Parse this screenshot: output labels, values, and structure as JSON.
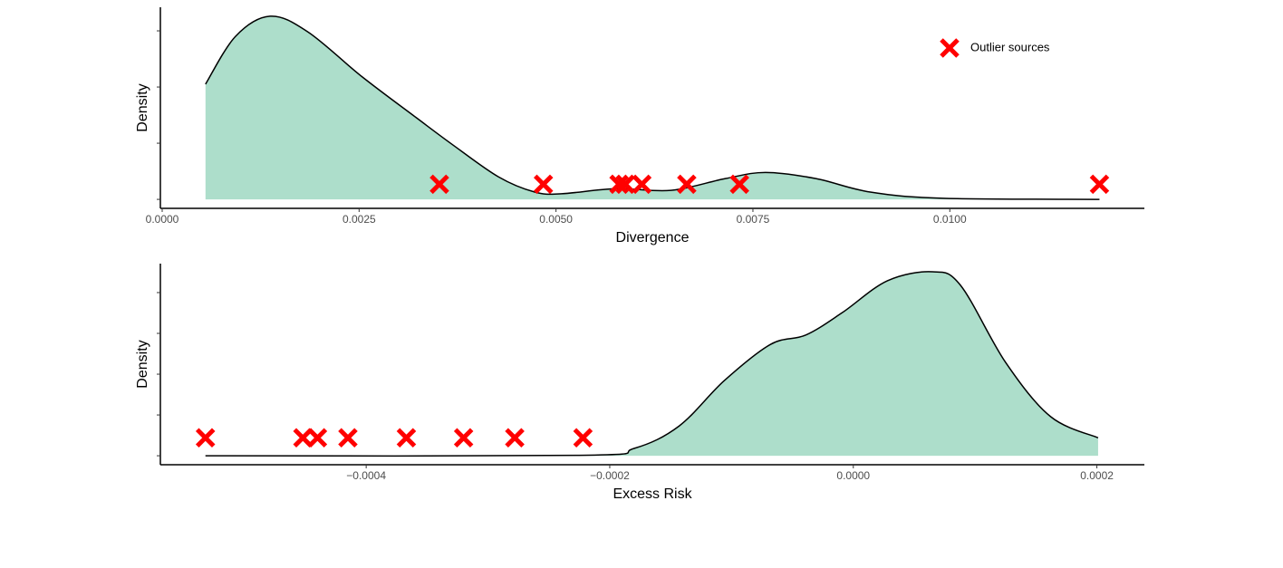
{
  "chart_data": [
    {
      "type": "density",
      "x_label": "Divergence",
      "y_label": "Density",
      "xlim": [
        -2.3e-05,
        0.01247
      ],
      "ylim": [
        -0.16,
        3.42
      ],
      "xticks": [
        {
          "value": 0,
          "label": "0.0000"
        },
        {
          "value": 0.0025,
          "label": "0.0025"
        },
        {
          "value": 0.005,
          "label": "0.0050"
        },
        {
          "value": 0.0075,
          "label": "0.0075"
        },
        {
          "value": 0.01,
          "label": "0.0100"
        }
      ],
      "yticks": [
        0,
        1,
        2,
        3
      ],
      "density": {
        "color": "#addecb",
        "x": [
          0.00055,
          0.00093,
          0.00137,
          0.00185,
          0.00254,
          0.00323,
          0.00369,
          0.00427,
          0.00473,
          0.00507,
          0.00576,
          0.00646,
          0.00715,
          0.00766,
          0.0083,
          0.00899,
          0.00991,
          0.0119
        ],
        "values": [
          2.05,
          2.9,
          3.26,
          2.98,
          2.18,
          1.45,
          0.97,
          0.4,
          0.13,
          0.1,
          0.19,
          0.16,
          0.37,
          0.48,
          0.37,
          0.13,
          0.02,
          0
        ]
      },
      "points": {
        "name": "Outlier sources",
        "color": "#ff0000",
        "x": [
          0.00352,
          0.00484,
          0.0058,
          0.00588,
          0.00609,
          0.00666,
          0.00733,
          0.0119
        ],
        "values": [
          0.27,
          0.27,
          0.27,
          0.27,
          0.27,
          0.27,
          0.27,
          0.27
        ]
      },
      "legend": "top-right"
    },
    {
      "type": "density",
      "x_label": "Excess Risk",
      "y_label": "Density",
      "xlim": [
        -0.000569,
        0.000239
      ],
      "ylim": [
        -0.22,
        4.71
      ],
      "xticks": [
        {
          "value": -0.0004,
          "label": "−0.0004"
        },
        {
          "value": -0.0002,
          "label": "−0.0002"
        },
        {
          "value": 0,
          "label": "0.0000"
        },
        {
          "value": 0.0002,
          "label": "0.0002"
        }
      ],
      "yticks": [
        0,
        1,
        2,
        3,
        4
      ],
      "density": {
        "color": "#addecb",
        "x": [
          -0.000532,
          -0.000225,
          -0.00018,
          -0.000143,
          -0.000106,
          -6.8e-05,
          -3.9e-05,
          -9e-06,
          2.8e-05,
          6.5e-05,
          8.8e-05,
          0.000125,
          0.000162,
          0.000201
        ],
        "values": [
          0,
          0.01,
          0.18,
          0.73,
          1.84,
          2.73,
          2.96,
          3.51,
          4.29,
          4.51,
          4.18,
          2.29,
          0.96,
          0.44
        ]
      },
      "points": {
        "color": "#ff0000",
        "x": [
          -0.000532,
          -0.000452,
          -0.00044,
          -0.000415,
          -0.000367,
          -0.00032,
          -0.000278,
          -0.000222
        ],
        "values": [
          0.44,
          0.44,
          0.44,
          0.44,
          0.44,
          0.44,
          0.44,
          0.44
        ]
      }
    }
  ]
}
